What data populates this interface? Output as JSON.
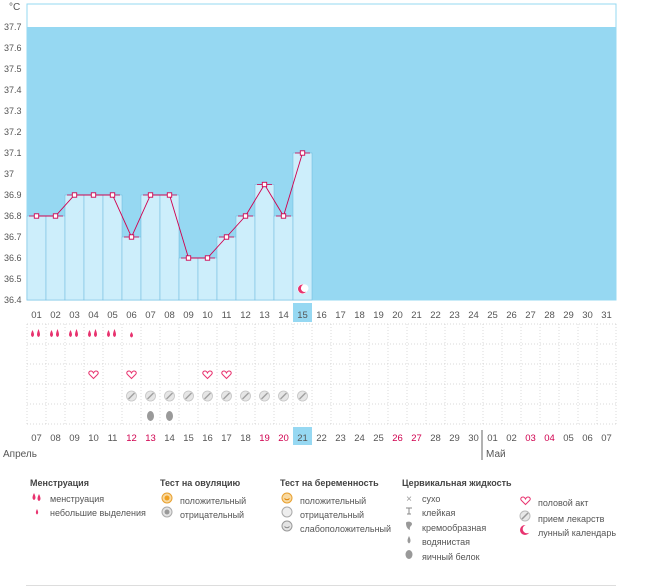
{
  "chart_data": {
    "type": "bar",
    "unit": "°C",
    "ylim": [
      36.4,
      37.8
    ],
    "y_ticks": [
      "37.7",
      "37.6",
      "37.5",
      "37.4",
      "37.3",
      "37.2",
      "37.1",
      "37",
      "36.9",
      "36.8",
      "36.7",
      "36.6",
      "36.5",
      "36.4"
    ],
    "categories": [
      "01",
      "02",
      "03",
      "04",
      "05",
      "06",
      "07",
      "08",
      "09",
      "10",
      "11",
      "12",
      "13",
      "14",
      "15",
      "16",
      "17",
      "18",
      "19",
      "20",
      "21",
      "22",
      "23",
      "24",
      "25",
      "26",
      "27",
      "28",
      "29",
      "30",
      "31"
    ],
    "values": [
      36.8,
      36.8,
      36.9,
      36.9,
      36.9,
      36.7,
      36.9,
      36.9,
      36.6,
      36.6,
      36.7,
      36.8,
      36.95,
      36.8,
      37.1,
      null,
      null,
      null,
      null,
      null,
      null,
      null,
      null,
      null,
      null,
      null,
      null,
      null,
      null,
      null,
      null
    ],
    "highlight_day": "15",
    "dates": [
      "07",
      "08",
      "09",
      "10",
      "11",
      "12",
      "13",
      "14",
      "15",
      "16",
      "17",
      "18",
      "19",
      "20",
      "21",
      "22",
      "23",
      "24",
      "25",
      "26",
      "27",
      "28",
      "29",
      "30",
      "01",
      "02",
      "03",
      "04",
      "05",
      "06",
      "07"
    ],
    "date_colors": [
      "#555555",
      "#555555",
      "#555555",
      "#555555",
      "#555555",
      "#d0004f",
      "#d0004f",
      "#555555",
      "#555555",
      "#555555",
      "#555555",
      "#555555",
      "#d0004f",
      "#d0004f",
      "#555555",
      "#555555",
      "#555555",
      "#555555",
      "#555555",
      "#d0004f",
      "#d0004f",
      "#555555",
      "#555555",
      "#555555",
      "#555555",
      "#555555",
      "#d0004f",
      "#d0004f",
      "#555555",
      "#555555",
      "#555555"
    ],
    "month_labels": [
      {
        "label": "Апрель",
        "index": 0
      },
      {
        "label": "Май",
        "index": 24
      }
    ],
    "rows": {
      "menstruation": [
        "m",
        "m",
        "m",
        "m",
        "m",
        "s",
        null,
        null,
        null,
        null,
        null,
        null,
        null,
        null,
        null,
        null,
        null,
        null,
        null,
        null,
        null,
        null,
        null,
        null,
        null,
        null,
        null,
        null,
        null,
        null,
        null
      ],
      "intercourse": [
        null,
        null,
        null,
        "h",
        null,
        "h",
        null,
        null,
        null,
        "h",
        "h",
        null,
        null,
        null,
        null,
        null,
        null,
        null,
        null,
        null,
        null,
        null,
        null,
        null,
        null,
        null,
        null,
        null,
        null,
        null,
        null
      ],
      "medicine": [
        null,
        null,
        null,
        null,
        null,
        "p",
        "p",
        "p",
        "p",
        "p",
        "p",
        "p",
        "p",
        "p",
        "p",
        null,
        null,
        null,
        null,
        null,
        null,
        null,
        null,
        null,
        null,
        null,
        null,
        null,
        null,
        null,
        null
      ],
      "cervical": [
        null,
        null,
        null,
        null,
        null,
        null,
        "e",
        "e",
        null,
        null,
        null,
        null,
        null,
        null,
        null,
        null,
        null,
        null,
        null,
        null,
        null,
        null,
        null,
        null,
        null,
        null,
        null,
        null,
        null,
        null,
        null
      ]
    },
    "moon_day_index": 14
  },
  "colors": {
    "chart_bg": "#96d8f2",
    "bar_fill": "#cdeefb",
    "bar_stroke": "#6ab8dc",
    "line": "#d0004f",
    "highlight": "#96d8f2",
    "grid_dots": "#cccccc",
    "pink": "#e8336f"
  },
  "legend": {
    "menstruation": {
      "title": "Менструация",
      "items": [
        {
          "icon": "drops-icon",
          "label": "менструация"
        },
        {
          "icon": "small-drop-icon",
          "label": "небольшие выделения"
        }
      ]
    },
    "ovulation": {
      "title": "Тест на овуляцию",
      "items": [
        {
          "icon": "positive-circle-icon",
          "label": "положительный"
        },
        {
          "icon": "negative-circle-icon",
          "label": "отрицательный"
        }
      ]
    },
    "pregnancy": {
      "title": "Тест на беременность",
      "items": [
        {
          "icon": "positive-smile-icon",
          "label": "положительный"
        },
        {
          "icon": "negative-circle-icon",
          "label": "отрицательный"
        },
        {
          "icon": "weak-positive-icon",
          "label": "слабоположительный"
        }
      ]
    },
    "cervical": {
      "title": "Цервикальная жидкость",
      "items": [
        {
          "icon": "cross-icon",
          "label": "сухо"
        },
        {
          "icon": "sticky-icon",
          "label": "клейкая"
        },
        {
          "icon": "creamy-icon",
          "label": "кремообразная"
        },
        {
          "icon": "water-drop-icon",
          "label": "водянистая"
        },
        {
          "icon": "egg-white-icon",
          "label": "яичный белок"
        }
      ]
    },
    "other": {
      "items": [
        {
          "icon": "heart-icon",
          "label": "половой акт"
        },
        {
          "icon": "pill-icon",
          "label": "прием лекарств"
        },
        {
          "icon": "moon-icon",
          "label": "лунный календарь"
        }
      ]
    }
  }
}
